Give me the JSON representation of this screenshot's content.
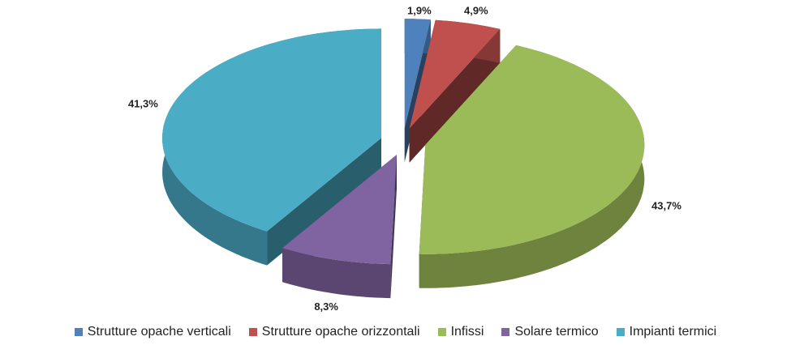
{
  "chart_data": {
    "type": "pie",
    "categories": [
      "Strutture opache verticali",
      "Strutture opache orizzontali",
      "Infissi",
      "Solare termico",
      "Impianti termici"
    ],
    "values": [
      1.9,
      4.9,
      43.7,
      8.3,
      41.3
    ],
    "value_labels": [
      "1,9%",
      "4,9%",
      "43,7%",
      "8,3%",
      "41,3%"
    ],
    "colors": [
      "#4f81bd",
      "#c0504d",
      "#9bbb59",
      "#8064a2",
      "#4bacc6"
    ],
    "legend": "bottom"
  }
}
